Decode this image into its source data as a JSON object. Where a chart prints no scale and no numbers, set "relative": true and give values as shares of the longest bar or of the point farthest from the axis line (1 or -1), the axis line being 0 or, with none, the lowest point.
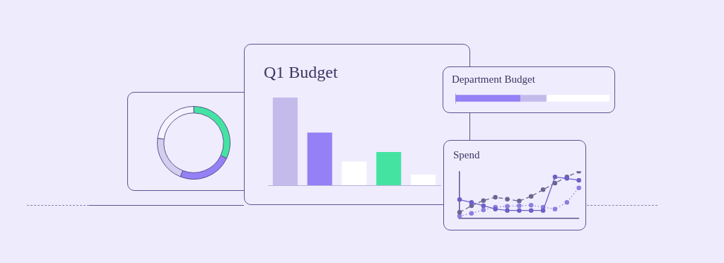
{
  "chart_data": [
    {
      "type": "donut",
      "categories": [
        null,
        null,
        null,
        null
      ],
      "values": [
        32,
        24,
        21,
        23
      ],
      "colors": [
        "#44e3a2",
        "#9580f5",
        "#d3cdee",
        "#f5f3ff"
      ]
    },
    {
      "type": "bar",
      "title": "Q1 Budget",
      "relative": true,
      "categories": [
        null,
        null,
        null,
        null,
        null
      ],
      "values": [
        1,
        0.6,
        0.27,
        0.38,
        0.12
      ],
      "colors": [
        "#c4bbec",
        "#9580f5",
        "#ffffff",
        "#44e3a2",
        "#ffffff"
      ]
    },
    {
      "type": "bar",
      "title": "Department Budget",
      "orientation": "horizontal",
      "stacked": true,
      "relative": true,
      "categories": [
        null
      ],
      "series": [
        {
          "color": "#9580f5",
          "values": [
            0.42
          ]
        },
        {
          "color": "#c4bbec",
          "values": [
            0.17
          ]
        },
        {
          "color": "#ffffff",
          "values": [
            0.41
          ]
        }
      ]
    },
    {
      "type": "line",
      "title": "Spend",
      "relative": true,
      "tick_labels": false,
      "marker": "circle",
      "categories": [
        null,
        null,
        null,
        null,
        null,
        null,
        null,
        null,
        null,
        null,
        null
      ],
      "series": [
        {
          "color": "#6c5fc7",
          "line_style": "solid",
          "values": [
            0.4,
            0.34,
            0.27,
            0.2,
            0.17,
            0.17,
            0.17,
            0.17,
            0.88,
            0.85,
            0.81
          ]
        },
        {
          "color": "#6b6691",
          "line_style": "dashed",
          "values": [
            0.13,
            0.27,
            0.38,
            0.45,
            0.41,
            0.37,
            0.47,
            0.61,
            0.75,
            0.88,
            1
          ]
        },
        {
          "color": "#8b7fe0",
          "line_style": "dotted",
          "values": [
            0.05,
            0.11,
            0.18,
            0.24,
            0.26,
            0.27,
            0.28,
            0.24,
            0.2,
            0.34,
            0.65
          ]
        }
      ]
    }
  ]
}
